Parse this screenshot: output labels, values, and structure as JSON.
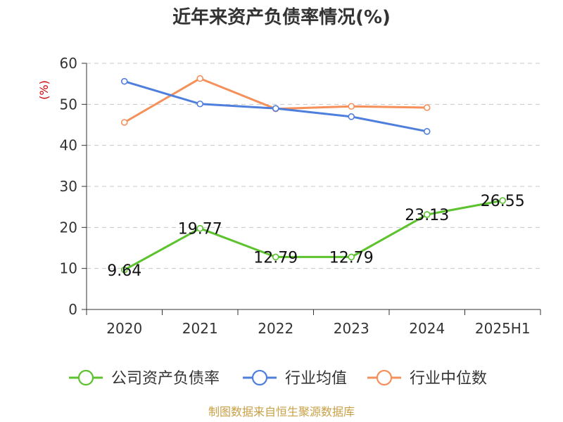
{
  "chart_data": {
    "type": "line",
    "title": "近年来资产负债率情况(%)",
    "y_unit": "(%)",
    "categories": [
      "2020",
      "2021",
      "2022",
      "2023",
      "2024",
      "2025H1"
    ],
    "ylim": [
      0,
      60
    ],
    "yticks": [
      0,
      10,
      20,
      30,
      40,
      50,
      60
    ],
    "grid": true,
    "legend_position": "bottom",
    "series": [
      {
        "name": "公司资产负债率",
        "color": "#5cc22d",
        "values": [
          9.64,
          19.77,
          12.79,
          12.79,
          23.13,
          26.55
        ],
        "show_labels": true
      },
      {
        "name": "行业均值",
        "color": "#4f7fdc",
        "values": [
          55.6,
          50.1,
          49.0,
          47.0,
          43.4,
          null
        ],
        "show_labels": false
      },
      {
        "name": "行业中位数",
        "color": "#f5905a",
        "values": [
          45.6,
          56.3,
          48.9,
          49.5,
          49.2,
          null
        ],
        "show_labels": false
      }
    ],
    "source": "制图数据来自恒生聚源数据库"
  }
}
